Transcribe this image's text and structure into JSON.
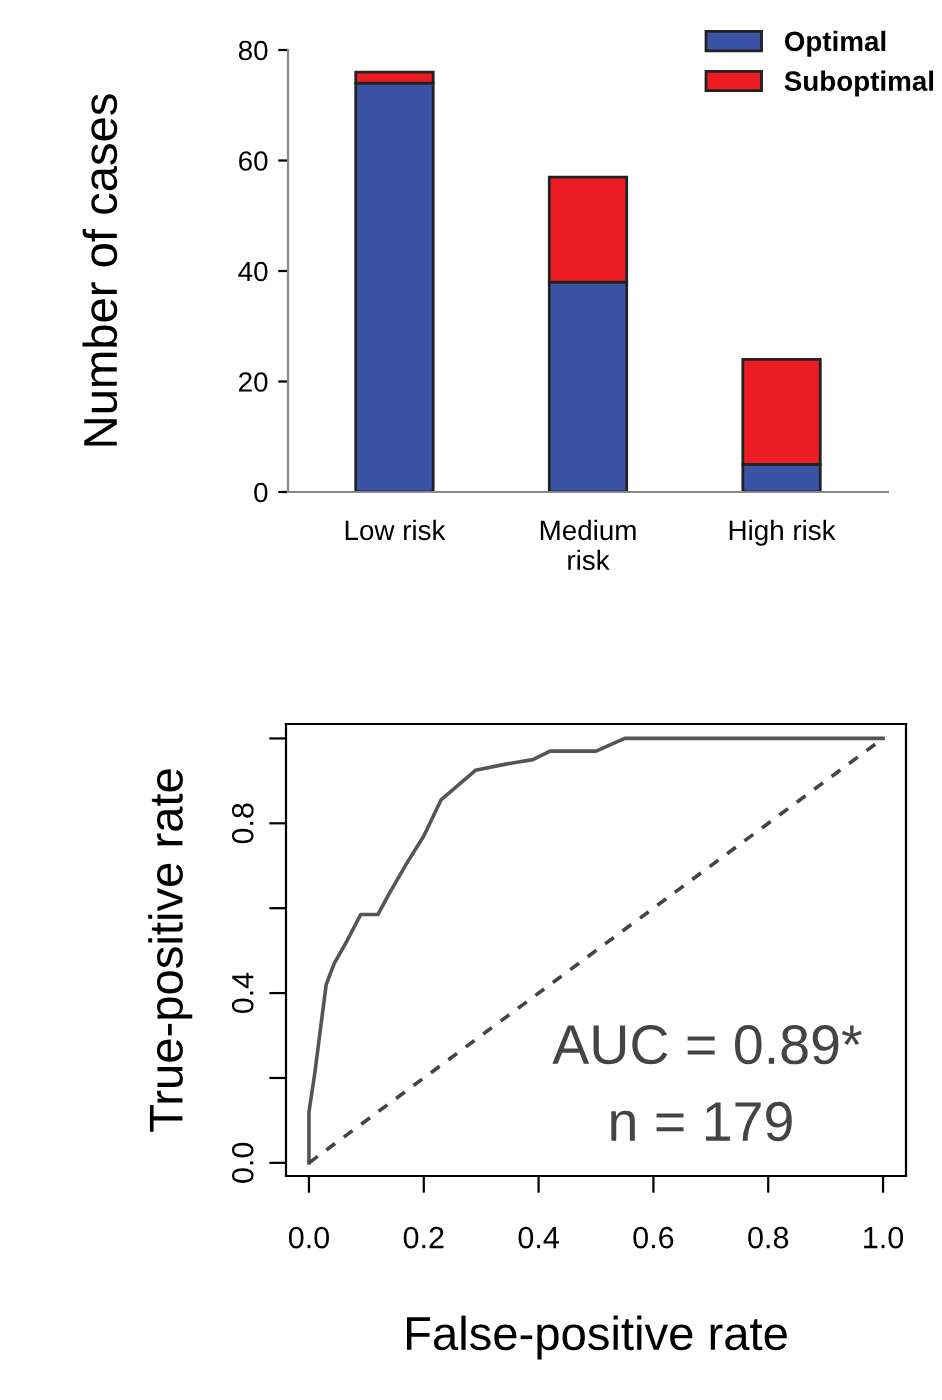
{
  "chart_data": [
    {
      "type": "bar",
      "ylabel": "Number of cases",
      "categories": [
        "Low risk",
        "Medium\nrisk",
        "High risk"
      ],
      "stacked": true,
      "legend": "top right",
      "grid": false,
      "ylim": [
        0,
        80
      ],
      "yticks": [
        0,
        20,
        40,
        60,
        80
      ],
      "series": [
        {
          "name": "Optimal",
          "color": "#3a53a4",
          "values": [
            74,
            38,
            5
          ]
        },
        {
          "name": "Suboptimal",
          "color": "#ed1c24",
          "values": [
            2,
            19,
            19
          ]
        }
      ]
    },
    {
      "type": "line",
      "xlabel": "False-positive rate",
      "ylabel": "True-positive rate",
      "xlim": [
        -0.04,
        1.04
      ],
      "ylim": [
        -0.031,
        1.034
      ],
      "xticks": [
        {
          "value": 0.0,
          "label": "0.0"
        },
        {
          "value": 0.2,
          "label": "0.2"
        },
        {
          "value": 0.4,
          "label": "0.4"
        },
        {
          "value": 0.6,
          "label": "0.6"
        },
        {
          "value": 0.8,
          "label": "0.8"
        },
        {
          "value": 1.0,
          "label": "1.0"
        }
      ],
      "yticks": [
        {
          "value": 0.0,
          "label": "0.0"
        },
        {
          "value": 0.2,
          "label": null
        },
        {
          "value": 0.4,
          "label": "0.4"
        },
        {
          "value": 0.6,
          "label": null
        },
        {
          "value": 0.8,
          "label": "0.8"
        },
        {
          "value": 1.0,
          "label": null
        }
      ],
      "grid": false,
      "marker": "none",
      "annotations": [
        "AUC = 0.89*",
        "n = 179"
      ],
      "series": [
        {
          "color": "#555555",
          "line_style": "solid",
          "x": [
            0,
            0,
            0.01,
            0.03,
            0.044,
            0.067,
            0.09,
            0.12,
            0.14,
            0.17,
            0.2,
            0.23,
            0.29,
            0.345,
            0.39,
            0.42,
            0.5,
            0.55,
            1.0
          ],
          "values": [
            0,
            0.12,
            0.21,
            0.42,
            0.47,
            0.525,
            0.585,
            0.585,
            0.635,
            0.705,
            0.77,
            0.855,
            0.925,
            0.94,
            0.95,
            0.97,
            0.97,
            1.0,
            1.0
          ]
        },
        {
          "color": "#444444",
          "line_style": "dashed",
          "x": [
            0,
            1
          ],
          "values": [
            0,
            1
          ]
        }
      ]
    }
  ]
}
